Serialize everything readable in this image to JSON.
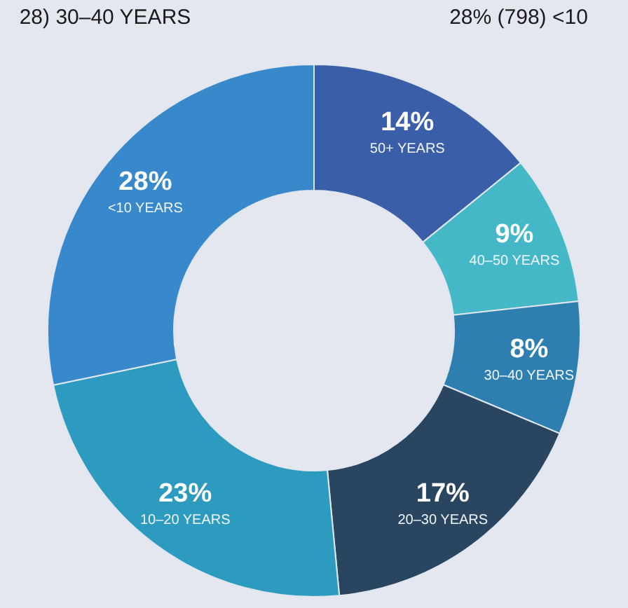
{
  "chart_data": {
    "type": "donut",
    "categories": [
      "50+ YEARS",
      "40–50 YEARS",
      "30–40 YEARS",
      "20–30 YEARS",
      "10–20 YEARS",
      "<10 YEARS"
    ],
    "values": [
      14,
      9,
      8,
      17,
      23,
      28
    ],
    "colors": [
      "#3a5fa8",
      "#45b8c8",
      "#2e7fb0",
      "#2a4560",
      "#2d9bc0",
      "#3888cc"
    ],
    "value_labels": [
      "14%",
      "9%",
      "8%",
      "17%",
      "23%",
      "28%"
    ],
    "annotations": [
      "28) 30–40 YEARS",
      "28% (798) <10"
    ]
  }
}
